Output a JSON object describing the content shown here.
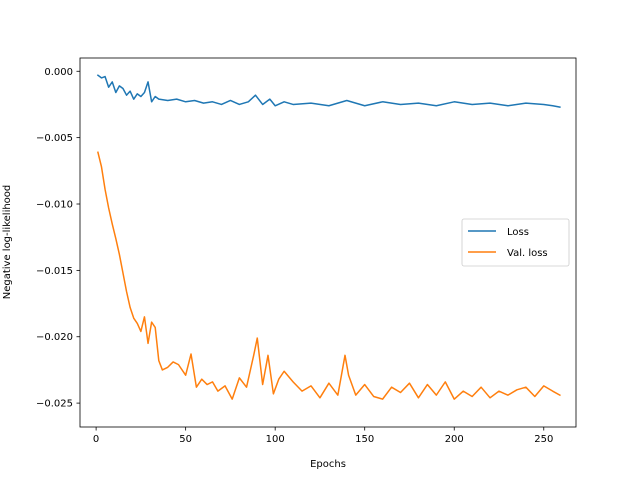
{
  "chart_data": {
    "type": "line",
    "title": "",
    "xlabel": "Epochs",
    "ylabel": "Negative log-likelihood",
    "xlim": [
      -9,
      268
    ],
    "ylim": [
      -0.0268,
      0.001
    ],
    "xticks": [
      0,
      50,
      100,
      150,
      200,
      250
    ],
    "xtick_labels": [
      "0",
      "50",
      "100",
      "150",
      "200",
      "250"
    ],
    "yticks": [
      0.0,
      -0.005,
      -0.01,
      -0.015,
      -0.02,
      -0.025
    ],
    "ytick_labels": [
      "0.000",
      "−0.005",
      "−0.010",
      "−0.015",
      "−0.020",
      "−0.025"
    ],
    "grid": false,
    "legend_position": "center-right",
    "series": [
      {
        "name": "Loss",
        "color": "#1f77b4",
        "points": [
          [
            1,
            -0.0003
          ],
          [
            3,
            -0.0005
          ],
          [
            5,
            -0.0004
          ],
          [
            7,
            -0.0012
          ],
          [
            9,
            -0.0008
          ],
          [
            11,
            -0.0016
          ],
          [
            13,
            -0.0011
          ],
          [
            15,
            -0.0013
          ],
          [
            17,
            -0.0018
          ],
          [
            19,
            -0.0015
          ],
          [
            21,
            -0.0021
          ],
          [
            23,
            -0.0017
          ],
          [
            25,
            -0.0019
          ],
          [
            27,
            -0.0016
          ],
          [
            29,
            -0.0008
          ],
          [
            31,
            -0.0023
          ],
          [
            33,
            -0.0019
          ],
          [
            35,
            -0.0021
          ],
          [
            40,
            -0.0022
          ],
          [
            45,
            -0.0021
          ],
          [
            50,
            -0.0023
          ],
          [
            55,
            -0.0022
          ],
          [
            60,
            -0.0024
          ],
          [
            65,
            -0.0023
          ],
          [
            70,
            -0.0025
          ],
          [
            75,
            -0.0022
          ],
          [
            80,
            -0.0025
          ],
          [
            85,
            -0.0023
          ],
          [
            89,
            -0.0018
          ],
          [
            93,
            -0.0025
          ],
          [
            97,
            -0.0021
          ],
          [
            100,
            -0.0026
          ],
          [
            105,
            -0.0023
          ],
          [
            110,
            -0.0025
          ],
          [
            120,
            -0.0024
          ],
          [
            130,
            -0.0026
          ],
          [
            140,
            -0.0022
          ],
          [
            150,
            -0.0026
          ],
          [
            160,
            -0.0023
          ],
          [
            170,
            -0.0025
          ],
          [
            180,
            -0.0024
          ],
          [
            190,
            -0.0026
          ],
          [
            200,
            -0.0023
          ],
          [
            210,
            -0.0025
          ],
          [
            220,
            -0.0024
          ],
          [
            230,
            -0.0026
          ],
          [
            240,
            -0.0024
          ],
          [
            250,
            -0.0025
          ],
          [
            255,
            -0.0026
          ],
          [
            259,
            -0.0027
          ]
        ]
      },
      {
        "name": "Val. loss",
        "color": "#ff7f0e",
        "points": [
          [
            1,
            -0.0061
          ],
          [
            3,
            -0.0072
          ],
          [
            5,
            -0.0089
          ],
          [
            7,
            -0.0103
          ],
          [
            9,
            -0.0115
          ],
          [
            11,
            -0.0126
          ],
          [
            13,
            -0.0138
          ],
          [
            15,
            -0.0152
          ],
          [
            17,
            -0.0166
          ],
          [
            19,
            -0.0178
          ],
          [
            21,
            -0.0186
          ],
          [
            23,
            -0.019
          ],
          [
            25,
            -0.0196
          ],
          [
            27,
            -0.0185
          ],
          [
            29,
            -0.0205
          ],
          [
            31,
            -0.0189
          ],
          [
            33,
            -0.0193
          ],
          [
            35,
            -0.0218
          ],
          [
            37,
            -0.0225
          ],
          [
            40,
            -0.0223
          ],
          [
            43,
            -0.0219
          ],
          [
            46,
            -0.0221
          ],
          [
            50,
            -0.0229
          ],
          [
            53,
            -0.0213
          ],
          [
            56,
            -0.0238
          ],
          [
            59,
            -0.0232
          ],
          [
            62,
            -0.0236
          ],
          [
            65,
            -0.0234
          ],
          [
            68,
            -0.0241
          ],
          [
            72,
            -0.0237
          ],
          [
            76,
            -0.0247
          ],
          [
            80,
            -0.0231
          ],
          [
            84,
            -0.0238
          ],
          [
            88,
            -0.0214
          ],
          [
            90,
            -0.0201
          ],
          [
            93,
            -0.0236
          ],
          [
            96,
            -0.0214
          ],
          [
            99,
            -0.0243
          ],
          [
            102,
            -0.0232
          ],
          [
            105,
            -0.0226
          ],
          [
            110,
            -0.0234
          ],
          [
            115,
            -0.0241
          ],
          [
            120,
            -0.0237
          ],
          [
            125,
            -0.0246
          ],
          [
            130,
            -0.0235
          ],
          [
            135,
            -0.0244
          ],
          [
            139,
            -0.0214
          ],
          [
            141,
            -0.0229
          ],
          [
            145,
            -0.0244
          ],
          [
            150,
            -0.0236
          ],
          [
            155,
            -0.0245
          ],
          [
            160,
            -0.0247
          ],
          [
            165,
            -0.0238
          ],
          [
            170,
            -0.0242
          ],
          [
            175,
            -0.0235
          ],
          [
            180,
            -0.0246
          ],
          [
            185,
            -0.0236
          ],
          [
            190,
            -0.0244
          ],
          [
            195,
            -0.0234
          ],
          [
            200,
            -0.0247
          ],
          [
            205,
            -0.0241
          ],
          [
            210,
            -0.0245
          ],
          [
            215,
            -0.0238
          ],
          [
            220,
            -0.0246
          ],
          [
            225,
            -0.0241
          ],
          [
            230,
            -0.0244
          ],
          [
            235,
            -0.024
          ],
          [
            240,
            -0.0238
          ],
          [
            245,
            -0.0245
          ],
          [
            250,
            -0.0237
          ],
          [
            255,
            -0.0241
          ],
          [
            259,
            -0.0244
          ]
        ]
      }
    ]
  }
}
